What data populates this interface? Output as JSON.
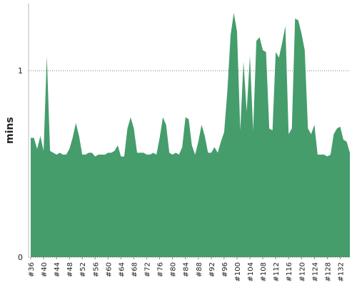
{
  "chart_data": {
    "type": "area",
    "y_label": "mins",
    "color": "#459d6c",
    "categories": [
      "#36",
      null,
      null,
      null,
      "#40",
      null,
      null,
      null,
      "#44",
      null,
      null,
      null,
      "#48",
      null,
      null,
      null,
      "#52",
      null,
      null,
      null,
      "#56",
      null,
      null,
      null,
      "#60",
      null,
      null,
      null,
      "#64",
      null,
      null,
      null,
      "#68",
      null,
      null,
      null,
      "#72",
      null,
      null,
      null,
      "#76",
      null,
      null,
      null,
      "#80",
      null,
      null,
      null,
      "#84",
      null,
      null,
      null,
      "#88",
      null,
      null,
      null,
      "#92",
      null,
      null,
      null,
      "#96",
      null,
      null,
      null,
      "#100",
      null,
      null,
      null,
      "#104",
      null,
      null,
      null,
      "#108",
      null,
      null,
      null,
      "#112",
      null,
      null,
      null,
      "#116",
      null,
      null,
      null,
      "#120",
      null,
      null,
      null,
      "#124",
      null,
      null,
      null,
      "#128",
      null,
      null,
      null,
      "#132",
      null,
      null,
      null
    ],
    "values": [
      0.64,
      0.64,
      0.58,
      0.65,
      0.57,
      1.08,
      0.57,
      0.56,
      0.55,
      0.56,
      0.55,
      0.55,
      0.58,
      0.64,
      0.72,
      0.65,
      0.55,
      0.55,
      0.56,
      0.56,
      0.54,
      0.55,
      0.55,
      0.55,
      0.56,
      0.56,
      0.57,
      0.6,
      0.54,
      0.54,
      0.69,
      0.75,
      0.69,
      0.56,
      0.56,
      0.56,
      0.55,
      0.55,
      0.56,
      0.55,
      0.64,
      0.75,
      0.71,
      0.56,
      0.55,
      0.56,
      0.55,
      0.59,
      0.75,
      0.74,
      0.6,
      0.55,
      0.62,
      0.71,
      0.65,
      0.56,
      0.56,
      0.59,
      0.56,
      0.62,
      0.67,
      0.89,
      1.19,
      1.31,
      1.21,
      0.68,
      1.05,
      0.78,
      1.08,
      0.68,
      1.16,
      1.18,
      1.11,
      1.1,
      0.69,
      0.68,
      1.1,
      1.07,
      1.15,
      1.24,
      0.66,
      0.69,
      1.28,
      1.27,
      1.2,
      1.11,
      0.69,
      0.66,
      0.71,
      0.55,
      0.55,
      0.55,
      0.54,
      0.55,
      0.66,
      0.69,
      0.7,
      0.63,
      0.62,
      0.56
    ],
    "ylim": [
      0,
      1.36
    ],
    "yticks": [
      0,
      1
    ],
    "grid": true
  }
}
